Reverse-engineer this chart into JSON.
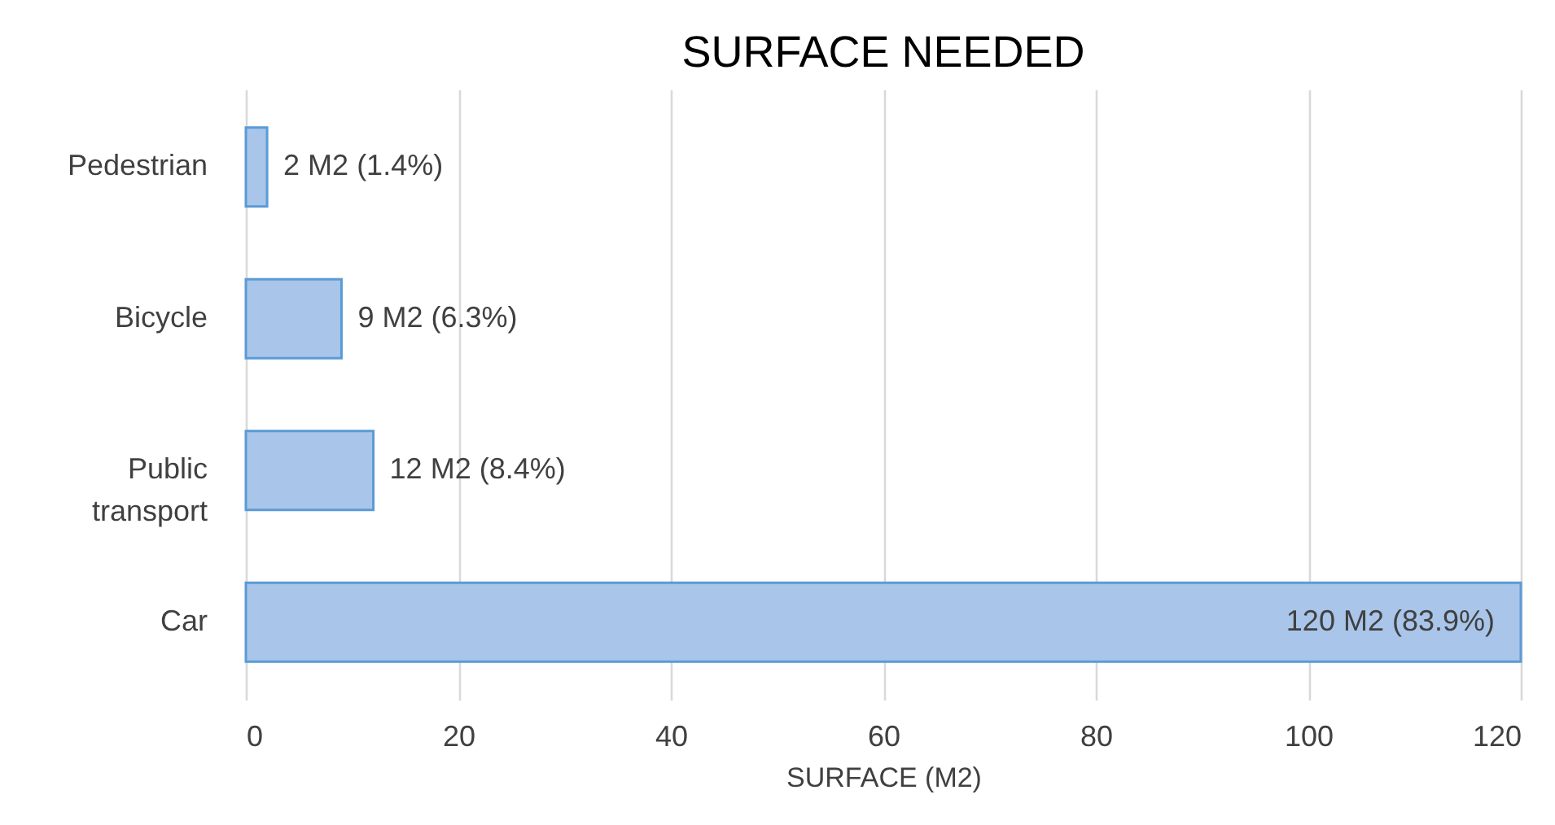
{
  "chart_data": {
    "type": "bar",
    "orientation": "horizontal",
    "title": "SURFACE NEEDED",
    "xlabel": "SURFACE (M2)",
    "categories": [
      "Pedestrian",
      "Bicycle",
      "Public transport",
      "Car"
    ],
    "values": [
      2,
      9,
      12,
      120
    ],
    "value_labels": [
      "2 M2 (1.4%)",
      "9 M2 (6.3%)",
      "12 M2 (8.4%)",
      "120 M2 (83.9%)"
    ],
    "color": "#a9c5ea",
    "xlim": [
      0,
      120
    ],
    "xticks": [
      0,
      20,
      40,
      60,
      80,
      100,
      120
    ],
    "grid": "x"
  }
}
